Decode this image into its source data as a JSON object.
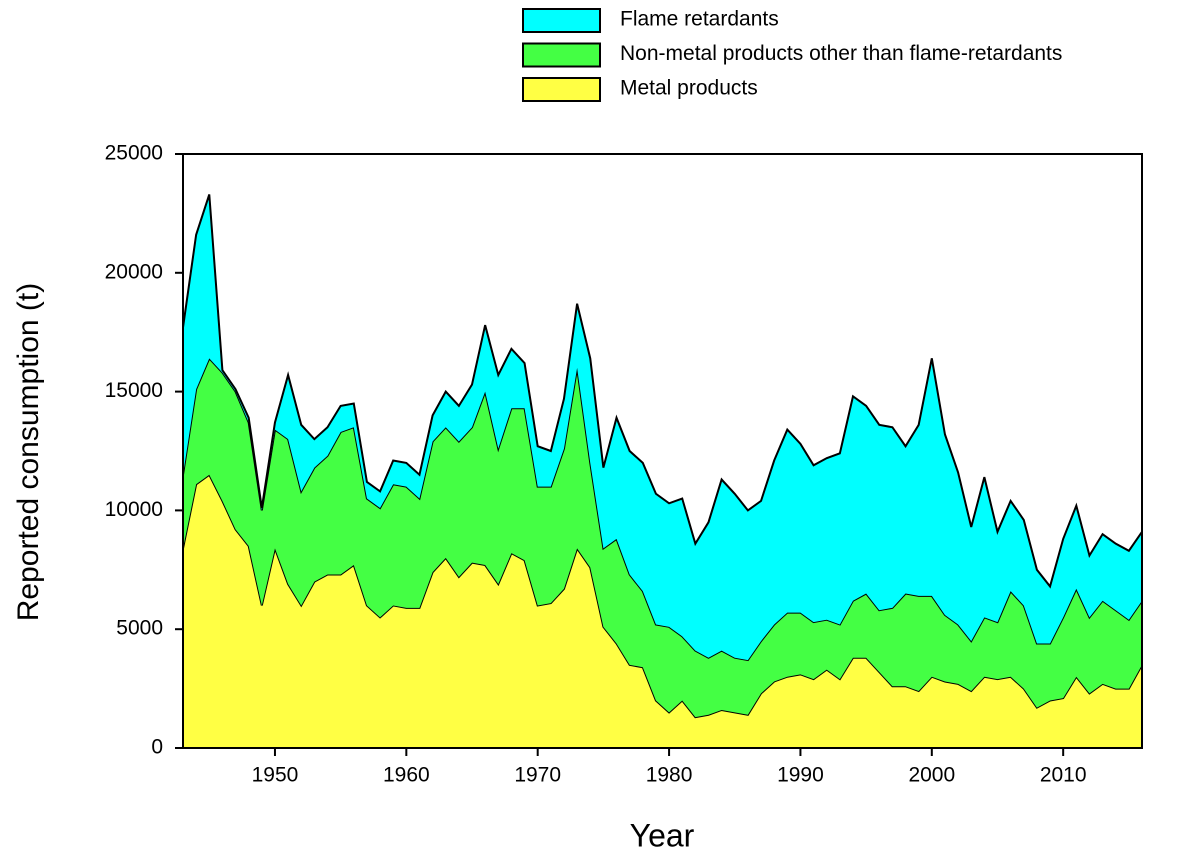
{
  "chart_data": {
    "type": "stacked-area",
    "xlabel": "Year",
    "ylabel": "Reported consumption (t)",
    "x": [
      1943,
      1944,
      1945,
      1946,
      1947,
      1948,
      1949,
      1950,
      1951,
      1952,
      1953,
      1954,
      1955,
      1956,
      1957,
      1958,
      1959,
      1960,
      1961,
      1962,
      1963,
      1964,
      1965,
      1966,
      1967,
      1968,
      1969,
      1970,
      1971,
      1972,
      1973,
      1974,
      1975,
      1976,
      1977,
      1978,
      1979,
      1980,
      1981,
      1982,
      1983,
      1984,
      1985,
      1986,
      1987,
      1988,
      1989,
      1990,
      1991,
      1992,
      1993,
      1994,
      1995,
      1996,
      1997,
      1998,
      1999,
      2000,
      2001,
      2002,
      2003,
      2004,
      2005,
      2006,
      2007,
      2008,
      2009,
      2010,
      2011,
      2012,
      2013,
      2014,
      2015,
      2016
    ],
    "series": [
      {
        "name": "Metal products",
        "color": "#ffff44",
        "values": [
          8400,
          11100,
          11500,
          10400,
          9200,
          8500,
          6000,
          8400,
          6900,
          6000,
          7000,
          7300,
          7300,
          7700,
          6000,
          5500,
          6000,
          5900,
          5900,
          7400,
          8000,
          7200,
          7800,
          7700,
          6900,
          8200,
          7900,
          6000,
          6100,
          6700,
          8400,
          7600,
          5100,
          4400,
          3500,
          3400,
          2000,
          1500,
          2000,
          1300,
          1400,
          1600,
          1500,
          1400,
          2300,
          2800,
          3000,
          3100,
          2900,
          3300,
          2900,
          3800,
          3800,
          3200,
          2600,
          2600,
          2400,
          3000,
          2800,
          2700,
          2400,
          3000,
          2900,
          3000,
          2500,
          1700,
          2000,
          2100,
          3000,
          2300,
          2700,
          2500,
          2500,
          3500
        ]
      },
      {
        "name": "Non-metal products other than flame-retardants",
        "color": "#44ff44",
        "values": [
          3100,
          4000,
          4900,
          5400,
          5800,
          5200,
          4000,
          5000,
          6100,
          4800,
          4800,
          5000,
          6000,
          5800,
          4500,
          4600,
          5100,
          5100,
          4600,
          5500,
          5500,
          5700,
          5700,
          7300,
          5700,
          6100,
          6400,
          5000,
          4900,
          5900,
          7600,
          4400,
          3300,
          4400,
          3800,
          3200,
          3200,
          3600,
          2700,
          2800,
          2400,
          2500,
          2300,
          2300,
          2200,
          2400,
          2700,
          2600,
          2400,
          2100,
          2300,
          2400,
          2700,
          2600,
          3300,
          3900,
          4000,
          3400,
          2800,
          2500,
          2100,
          2500,
          2400,
          3600,
          3500,
          2700,
          2400,
          3400,
          3700,
          3200,
          3500,
          3300,
          2900,
          2700
        ]
      },
      {
        "name": "Flame retardants",
        "color": "#00ffff",
        "values": [
          6200,
          6500,
          6900,
          100,
          100,
          200,
          100,
          300,
          2700,
          2800,
          1200,
          1200,
          1100,
          1000,
          700,
          700,
          1000,
          1000,
          1000,
          1100,
          1500,
          1500,
          1800,
          2800,
          3100,
          2500,
          1900,
          1700,
          1500,
          2100,
          2700,
          4400,
          3400,
          5100,
          5200,
          5400,
          5500,
          5200,
          5800,
          4500,
          5700,
          7200,
          6900,
          6300,
          5900,
          6900,
          7700,
          7100,
          6600,
          6800,
          7200,
          8600,
          7900,
          7800,
          7600,
          6200,
          7200,
          10000,
          7600,
          6400,
          4800,
          5900,
          3800,
          3800,
          3600,
          3100,
          2400,
          3300,
          3500,
          2600,
          2800,
          2800,
          2900,
          2900
        ]
      }
    ],
    "xlim": [
      1943,
      2016
    ],
    "xticks": [
      1950,
      1960,
      1970,
      1980,
      1990,
      2000,
      2010
    ],
    "ylim": [
      0,
      25000
    ],
    "yticks": [
      0,
      5000,
      10000,
      15000,
      20000,
      25000
    ],
    "legend": "top",
    "legend_order": "reversed"
  }
}
